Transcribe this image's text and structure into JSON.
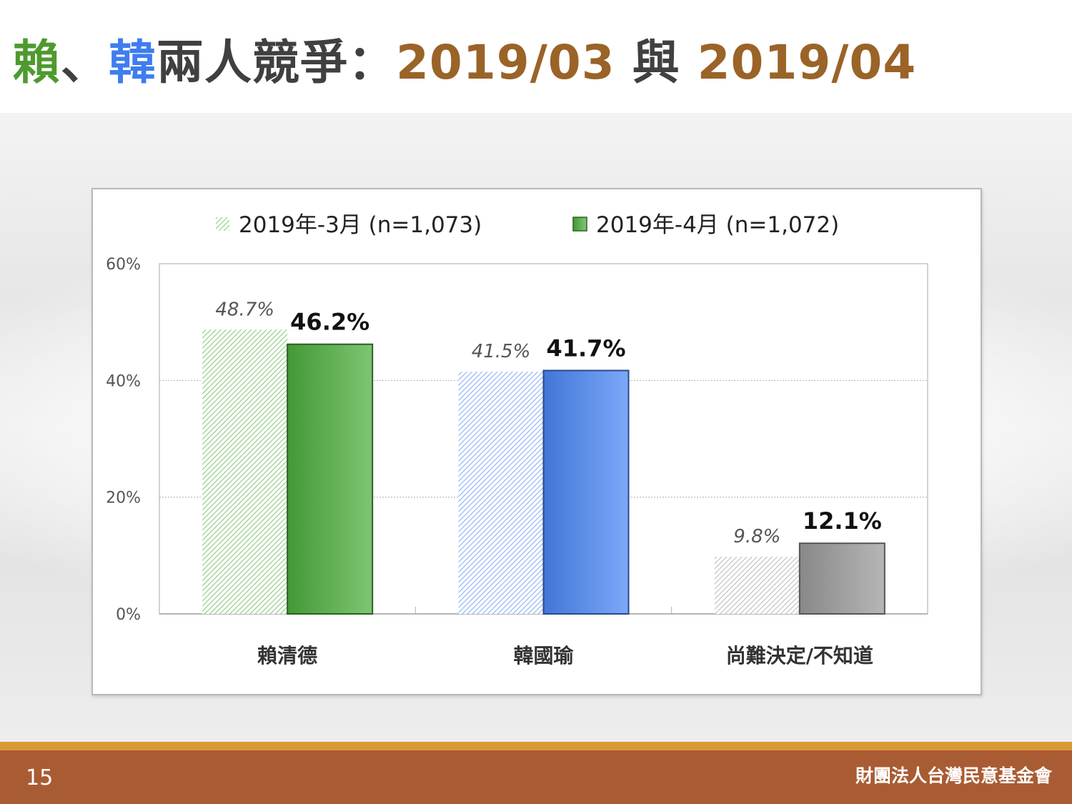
{
  "title": {
    "name_lai": "賴",
    "separator": "、",
    "name_han": "韓",
    "rest": "兩人競爭：",
    "date1": "2019/03",
    "conjunction": " 與 ",
    "date2": "2019/04"
  },
  "colors": {
    "lai_green": "#4f9a2f",
    "han_blue": "#3f7df0",
    "date_brown": "#9a6328",
    "footer_brown": "#a95c33",
    "footer_stripe": "#d99a34"
  },
  "chart_data": {
    "type": "bar",
    "categories": [
      "賴清德",
      "韓國瑜",
      "尚難決定/不知道"
    ],
    "series": [
      {
        "name": "2019年-3月 (n=1,073)",
        "values": [
          48.7,
          41.5,
          9.8
        ],
        "labels": [
          "48.7%",
          "41.5%",
          "9.8%"
        ],
        "style": "hatched"
      },
      {
        "name": "2019年-4月 (n=1,072)",
        "values": [
          46.2,
          41.7,
          12.1
        ],
        "labels": [
          "46.2%",
          "41.7%",
          "12.1%"
        ],
        "style": "solid"
      }
    ],
    "category_colors": [
      "#4cae3c",
      "#4a86f5",
      "#9a9a9a"
    ],
    "ylim": [
      0,
      60
    ],
    "yticks": [
      0,
      20,
      40,
      60
    ],
    "ytick_labels": [
      "0%",
      "20%",
      "40%",
      "60%"
    ],
    "grid": true,
    "legend": "top-center"
  },
  "footer": {
    "page_number": "15",
    "organization": "財團法人台灣民意基金會"
  }
}
